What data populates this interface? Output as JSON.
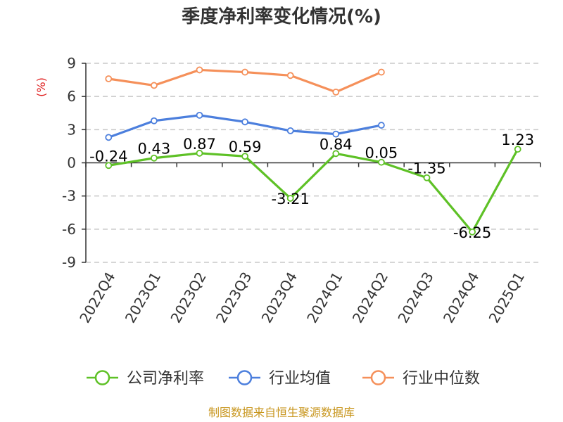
{
  "chart_data": {
    "type": "line",
    "title": "季度净利率变化情况(%)",
    "ylabel": "(%)",
    "categories": [
      "2022Q4",
      "2023Q1",
      "2023Q2",
      "2023Q3",
      "2023Q4",
      "2024Q1",
      "2024Q2",
      "2024Q3",
      "2024Q4",
      "2025Q1"
    ],
    "ylim": [
      -9,
      9
    ],
    "yticks": [
      9,
      6,
      3,
      0,
      -3,
      -6,
      -9
    ],
    "grid": true,
    "legend_position": "bottom",
    "series": [
      {
        "name": "公司净利率",
        "color": "#5ec126",
        "values": [
          -0.24,
          0.43,
          0.87,
          0.59,
          -3.21,
          0.84,
          0.05,
          -1.35,
          -6.25,
          1.23
        ],
        "labels": [
          "-0.24",
          "0.43",
          "0.87",
          "0.59",
          "-3.21",
          "0.84",
          "0.05",
          "-1.35",
          "-6.25",
          "1.23"
        ]
      },
      {
        "name": "行业均值",
        "color": "#4c7fdd",
        "values": [
          2.3,
          3.8,
          4.3,
          3.7,
          2.9,
          2.6,
          3.4,
          null,
          null,
          null
        ]
      },
      {
        "name": "行业中位数",
        "color": "#f5905a",
        "values": [
          7.6,
          7.0,
          8.4,
          8.2,
          7.9,
          6.4,
          8.2,
          null,
          null,
          null
        ]
      }
    ]
  },
  "source": "制图数据来自恒生聚源数据库"
}
